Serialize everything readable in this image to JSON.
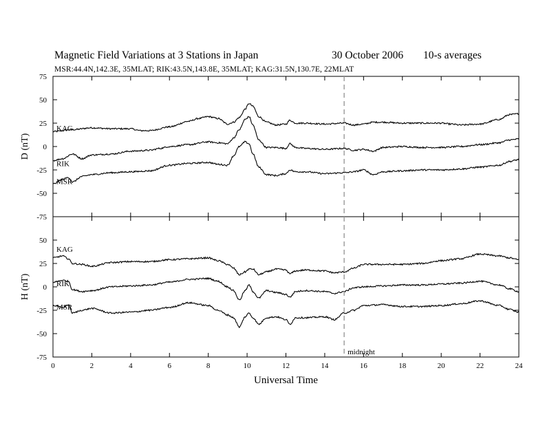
{
  "header": {
    "title": "Magnetic Field Variations at 3 Stations in Japan",
    "date": "30 October 2006",
    "averaging": "10-s averages",
    "stations": "MSR:44.4N,142.3E, 35MLAT;   RIK:43.5N,143.8E, 35MLAT;   KAG:31.5N,130.7E, 22MLAT"
  },
  "chart_data": [
    {
      "type": "line",
      "panel": "D",
      "ylabel": "D (nT)",
      "xlabel": "",
      "xlim": [
        0,
        24
      ],
      "ylim": [
        -75,
        75
      ],
      "yticks": [
        75,
        50,
        25,
        0,
        -25,
        -50,
        -75
      ],
      "series": [
        {
          "name": "KAG",
          "x": [
            0,
            1,
            2,
            3,
            4,
            4.5,
            5,
            6,
            7,
            7.5,
            8,
            8.5,
            9,
            9.3,
            9.6,
            9.9,
            10.1,
            10.3,
            10.6,
            11,
            11.5,
            12,
            12.2,
            12.5,
            13,
            14,
            15,
            15.5,
            16,
            16.5,
            17,
            18,
            19,
            20,
            20.5,
            21,
            22,
            23,
            23.5,
            24
          ],
          "y": [
            16,
            18,
            20,
            19,
            19,
            17,
            17,
            21,
            27,
            30,
            32,
            30,
            24,
            26,
            31,
            40,
            46,
            43,
            32,
            26,
            23,
            24,
            28,
            25,
            25,
            24,
            25,
            23,
            24,
            26,
            26,
            25,
            25,
            25,
            24,
            23,
            24,
            29,
            34,
            35
          ]
        },
        {
          "name": "RIK",
          "x": [
            0,
            0.5,
            1,
            1.5,
            2,
            3,
            4,
            5,
            5.5,
            6,
            7,
            8,
            8.5,
            9,
            9.3,
            9.6,
            9.9,
            10.1,
            10.3,
            10.6,
            11,
            11.5,
            12,
            12.2,
            12.5,
            13,
            14,
            15,
            15.5,
            16,
            16.5,
            17,
            18,
            19,
            20,
            21,
            22,
            23,
            23.5,
            24
          ],
          "y": [
            -15,
            -13,
            -8,
            -13,
            -9,
            -8,
            -5,
            -4,
            -2,
            0,
            2,
            5,
            4,
            3,
            9,
            18,
            29,
            32,
            23,
            7,
            -1,
            -1,
            -2,
            3,
            -1,
            -2,
            -3,
            -2,
            -4,
            -3,
            -5,
            -1,
            0,
            -1,
            -1,
            0,
            2,
            4,
            7,
            8
          ]
        },
        {
          "name": "MSR",
          "x": [
            0,
            0.5,
            0.8,
            1,
            1.5,
            2,
            3,
            4,
            5,
            6,
            7,
            8,
            8.5,
            9,
            9.3,
            9.6,
            9.9,
            10.1,
            10.3,
            10.6,
            11,
            11.5,
            12,
            12.2,
            12.5,
            13,
            14,
            15,
            15.5,
            16,
            16.5,
            17,
            18,
            19,
            20,
            21,
            22,
            23,
            23.5,
            24
          ],
          "y": [
            -40,
            -35,
            -33,
            -38,
            -32,
            -30,
            -28,
            -27,
            -26,
            -20,
            -18,
            -17,
            -19,
            -20,
            -10,
            0,
            5,
            3,
            -8,
            -22,
            -30,
            -31,
            -29,
            -25,
            -27,
            -27,
            -29,
            -28,
            -27,
            -25,
            -30,
            -27,
            -26,
            -25,
            -25,
            -24,
            -22,
            -20,
            -16,
            -14
          ]
        }
      ]
    },
    {
      "type": "line",
      "panel": "H",
      "ylabel": "H (nT)",
      "xlabel": "Universal Time",
      "xlim": [
        0,
        24
      ],
      "ylim": [
        -75,
        75
      ],
      "yticks": [
        75,
        50,
        25,
        0,
        -25,
        -50,
        -75
      ],
      "xticks": [
        0,
        2,
        4,
        6,
        8,
        10,
        12,
        14,
        16,
        18,
        20,
        22,
        24
      ],
      "series": [
        {
          "name": "KAG",
          "x": [
            0,
            0.5,
            0.8,
            1,
            1.5,
            2,
            3,
            4,
            5,
            6,
            7,
            8,
            8.5,
            9,
            9.3,
            9.6,
            9.9,
            10.1,
            10.3,
            10.6,
            11,
            11.5,
            12,
            12.2,
            12.5,
            13,
            14,
            14.5,
            15,
            15.5,
            16,
            17,
            18,
            19,
            20,
            21,
            22,
            23,
            23.5,
            24
          ],
          "y": [
            31,
            33,
            30,
            25,
            24,
            22,
            26,
            27,
            27,
            29,
            30,
            31,
            28,
            24,
            20,
            13,
            16,
            19,
            19,
            13,
            16,
            19,
            18,
            14,
            17,
            18,
            17,
            15,
            16,
            20,
            24,
            24,
            24,
            25,
            28,
            30,
            35,
            33,
            31,
            29
          ]
        },
        {
          "name": "RIK",
          "x": [
            0,
            0.5,
            0.8,
            1,
            1.5,
            2,
            3,
            4,
            5,
            6,
            7,
            8,
            8.5,
            9,
            9.3,
            9.6,
            9.9,
            10.1,
            10.3,
            10.6,
            11,
            11.5,
            12,
            12.2,
            12.5,
            13,
            14,
            14.5,
            15,
            15.5,
            16,
            17,
            18,
            19,
            20,
            21,
            22,
            23,
            23.5,
            24
          ],
          "y": [
            5,
            7,
            6,
            -3,
            -5,
            -4,
            0,
            1,
            2,
            5,
            8,
            9,
            6,
            0,
            -4,
            -14,
            -4,
            2,
            -5,
            -12,
            -4,
            -6,
            -8,
            -11,
            -5,
            -4,
            -5,
            -7,
            -5,
            -1,
            0,
            1,
            2,
            2,
            3,
            4,
            6,
            2,
            -2,
            -5
          ]
        },
        {
          "name": "MSR",
          "x": [
            0,
            0.5,
            0.8,
            1,
            1.5,
            2,
            3,
            4,
            5,
            6,
            7,
            8,
            8.5,
            9,
            9.3,
            9.6,
            9.9,
            10.1,
            10.3,
            10.6,
            11,
            11.5,
            12,
            12.2,
            12.5,
            13,
            14,
            14.5,
            15,
            15.5,
            16,
            17,
            18,
            19,
            20,
            21,
            22,
            23,
            23.5,
            24
          ],
          "y": [
            -20,
            -22,
            -19,
            -28,
            -25,
            -23,
            -28,
            -27,
            -25,
            -22,
            -17,
            -20,
            -25,
            -30,
            -33,
            -43,
            -32,
            -28,
            -33,
            -40,
            -33,
            -32,
            -35,
            -40,
            -33,
            -33,
            -32,
            -35,
            -28,
            -25,
            -20,
            -19,
            -21,
            -21,
            -20,
            -18,
            -15,
            -20,
            -24,
            -27
          ]
        }
      ]
    }
  ],
  "annotation": {
    "label": "midnight",
    "x": 15
  }
}
